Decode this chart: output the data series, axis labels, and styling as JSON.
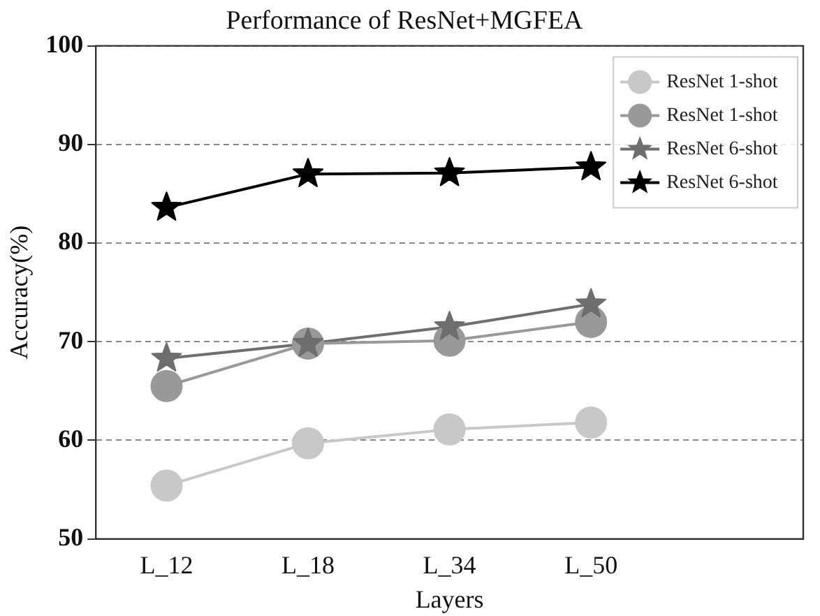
{
  "chart_data": {
    "type": "line",
    "title": "Performance of ResNet+MGFEA",
    "xlabel": "Layers",
    "ylabel": "Accuracy(%)",
    "categories": [
      "L_12",
      "L_18",
      "L_34",
      "L_50"
    ],
    "series": [
      {
        "name": "ResNet 1-shot",
        "color": "#c8c8c8",
        "marker": "circle",
        "values": [
          55.4,
          59.7,
          61.1,
          61.8
        ]
      },
      {
        "name": "ResNet 1-shot",
        "color": "#999999",
        "marker": "circle",
        "values": [
          65.5,
          69.8,
          70.1,
          72.0
        ]
      },
      {
        "name": "ResNet 6-shot",
        "color": "#6e6e6e",
        "marker": "star",
        "values": [
          68.3,
          69.8,
          71.5,
          73.8
        ]
      },
      {
        "name": "ResNet 6-shot",
        "color": "#000000",
        "marker": "star",
        "values": [
          83.6,
          87.0,
          87.1,
          87.7
        ]
      }
    ],
    "ylim": [
      50,
      100
    ],
    "yticks": [
      50,
      60,
      70,
      80,
      90,
      100
    ],
    "grid": "y",
    "legend": "top right",
    "line_style": "solid"
  }
}
